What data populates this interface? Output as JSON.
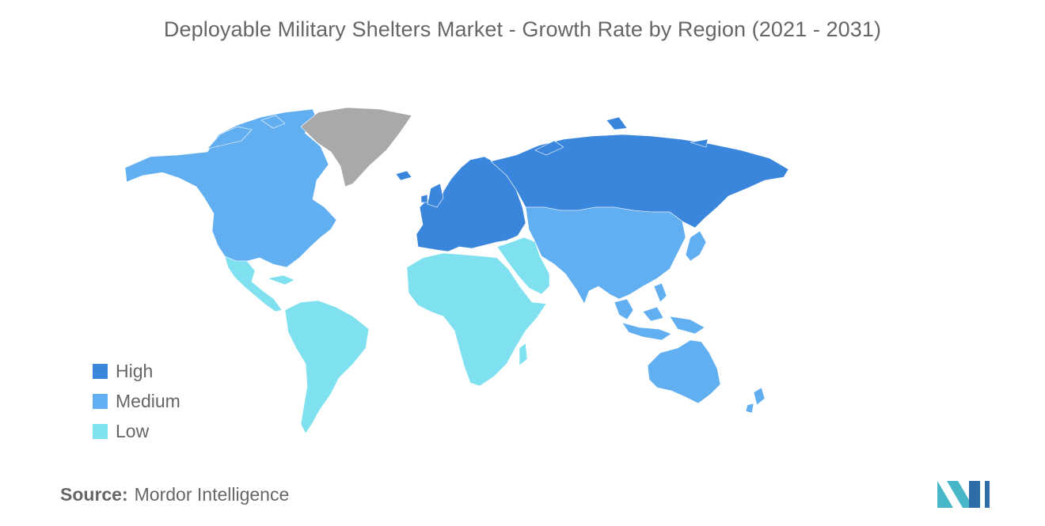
{
  "title": "Deployable Military Shelters Market - Growth Rate by Region (2021 - 2031)",
  "legend": [
    {
      "key": "high",
      "label": "High",
      "color": "#3b86dd"
    },
    {
      "key": "medium",
      "label": "Medium",
      "color": "#61aff1"
    },
    {
      "key": "low",
      "label": "Low",
      "color": "#7fe0ef"
    }
  ],
  "no_data_color": "#a9a9a9",
  "regions": {
    "north_america": "medium",
    "central_america": "low",
    "south_america": "low",
    "europe": "high",
    "russia": "high",
    "middle_east": "low",
    "africa": "low",
    "asia": "medium",
    "southeast_asia": "medium",
    "australia": "medium",
    "new_zealand": "medium",
    "greenland": "none"
  },
  "source": {
    "label": "Source:",
    "value": "Mordor Intelligence"
  },
  "logo": {
    "colors": [
      "#47b7c8",
      "#2e6ea8"
    ]
  }
}
